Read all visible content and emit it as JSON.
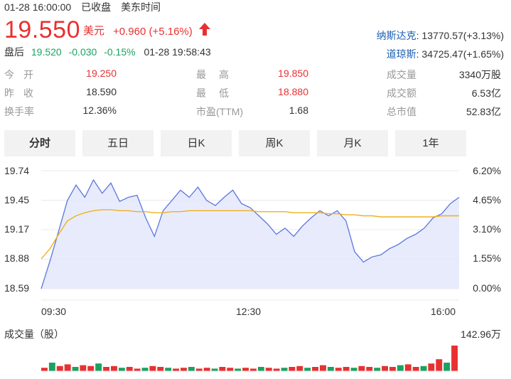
{
  "header": {
    "datetime": "01-28 16:00:00",
    "status": "已收盘",
    "timezone": "美东时间"
  },
  "quote": {
    "price": "19.550",
    "currency": "美元",
    "change": "+0.960",
    "change_pct": "(+5.16%)",
    "direction_icon": "up-arrow-icon",
    "up_color": "#e93030",
    "down_color": "#1aa260"
  },
  "after_hours": {
    "label": "盘后",
    "price": "19.520",
    "change": "-0.030",
    "change_pct": "-0.15%",
    "time": "01-28 19:58:43"
  },
  "indices": [
    {
      "name": "纳斯达克",
      "value": "13770.57(+3.13%)"
    },
    {
      "name": "道琼斯",
      "value": "34725.47(+1.65%)"
    }
  ],
  "stats": {
    "open_label": "今开",
    "open": "19.250",
    "prev_close_label": "昨收",
    "prev_close": "18.590",
    "turnover_label": "换手率",
    "turnover": "12.36%",
    "high_label": "最高",
    "high": "19.850",
    "low_label": "最低",
    "low": "18.880",
    "pe_label": "市盈(TTM)",
    "pe": "1.68",
    "volume_label": "成交量",
    "volume": "3340万股",
    "amount_label": "成交额",
    "amount": "6.53亿",
    "mcap_label": "总市值",
    "mcap": "52.83亿"
  },
  "tabs": [
    {
      "label": "分时",
      "active": true
    },
    {
      "label": "五日",
      "active": false
    },
    {
      "label": "日K",
      "active": false
    },
    {
      "label": "周K",
      "active": false
    },
    {
      "label": "月K",
      "active": false
    },
    {
      "label": "1年",
      "active": false
    }
  ],
  "chart_data": {
    "type": "line",
    "y_left_ticks": [
      "19.74",
      "19.45",
      "19.17",
      "18.88",
      "18.59"
    ],
    "y_right_ticks": [
      "6.20%",
      "4.65%",
      "3.10%",
      "1.55%",
      "0.00%"
    ],
    "x_ticks": [
      "09:30",
      "12:30",
      "16:00"
    ],
    "ylim": [
      18.59,
      19.74
    ],
    "series": [
      {
        "values": [
          18.59,
          18.86,
          19.15,
          19.45,
          19.6,
          19.48,
          19.65,
          19.52,
          19.62,
          19.44,
          19.48,
          19.5,
          19.28,
          19.1,
          19.35,
          19.45,
          19.55,
          19.48,
          19.58,
          19.45,
          19.4,
          19.48,
          19.55,
          19.42,
          19.38,
          19.3,
          19.22,
          19.12,
          19.18,
          19.1,
          19.2,
          19.28,
          19.35,
          19.3,
          19.35,
          19.25,
          18.95,
          18.85,
          18.9,
          18.92,
          18.98,
          19.02,
          19.08,
          19.12,
          19.18,
          19.28,
          19.32,
          19.42,
          19.48
        ],
        "color": "#5b76e0"
      },
      {
        "values": [
          18.88,
          18.98,
          19.12,
          19.25,
          19.3,
          19.33,
          19.35,
          19.36,
          19.36,
          19.35,
          19.35,
          19.34,
          19.34,
          19.33,
          19.33,
          19.34,
          19.34,
          19.35,
          19.35,
          19.35,
          19.35,
          19.35,
          19.35,
          19.35,
          19.35,
          19.34,
          19.34,
          19.34,
          19.34,
          19.33,
          19.33,
          19.33,
          19.33,
          19.32,
          19.32,
          19.31,
          19.31,
          19.3,
          19.3,
          19.29,
          19.29,
          19.29,
          19.29,
          19.29,
          19.29,
          19.29,
          19.3,
          19.3,
          19.3
        ],
        "color": "#f0b020"
      }
    ],
    "volume": {
      "title": "成交量（股）",
      "max_label": "142.96万",
      "values": [
        4,
        10,
        6,
        8,
        5,
        7,
        6,
        9,
        5,
        6,
        4,
        5,
        3,
        4,
        6,
        5,
        4,
        3,
        4,
        5,
        3,
        4,
        3,
        5,
        4,
        3,
        4,
        3,
        5,
        4,
        3,
        4,
        5,
        6,
        4,
        5,
        7,
        5,
        4,
        5,
        4,
        6,
        5,
        4,
        6,
        5,
        7,
        8,
        5,
        6,
        9,
        14,
        10,
        30
      ],
      "colors": [
        "#e93030",
        "#1aa260"
      ]
    }
  }
}
